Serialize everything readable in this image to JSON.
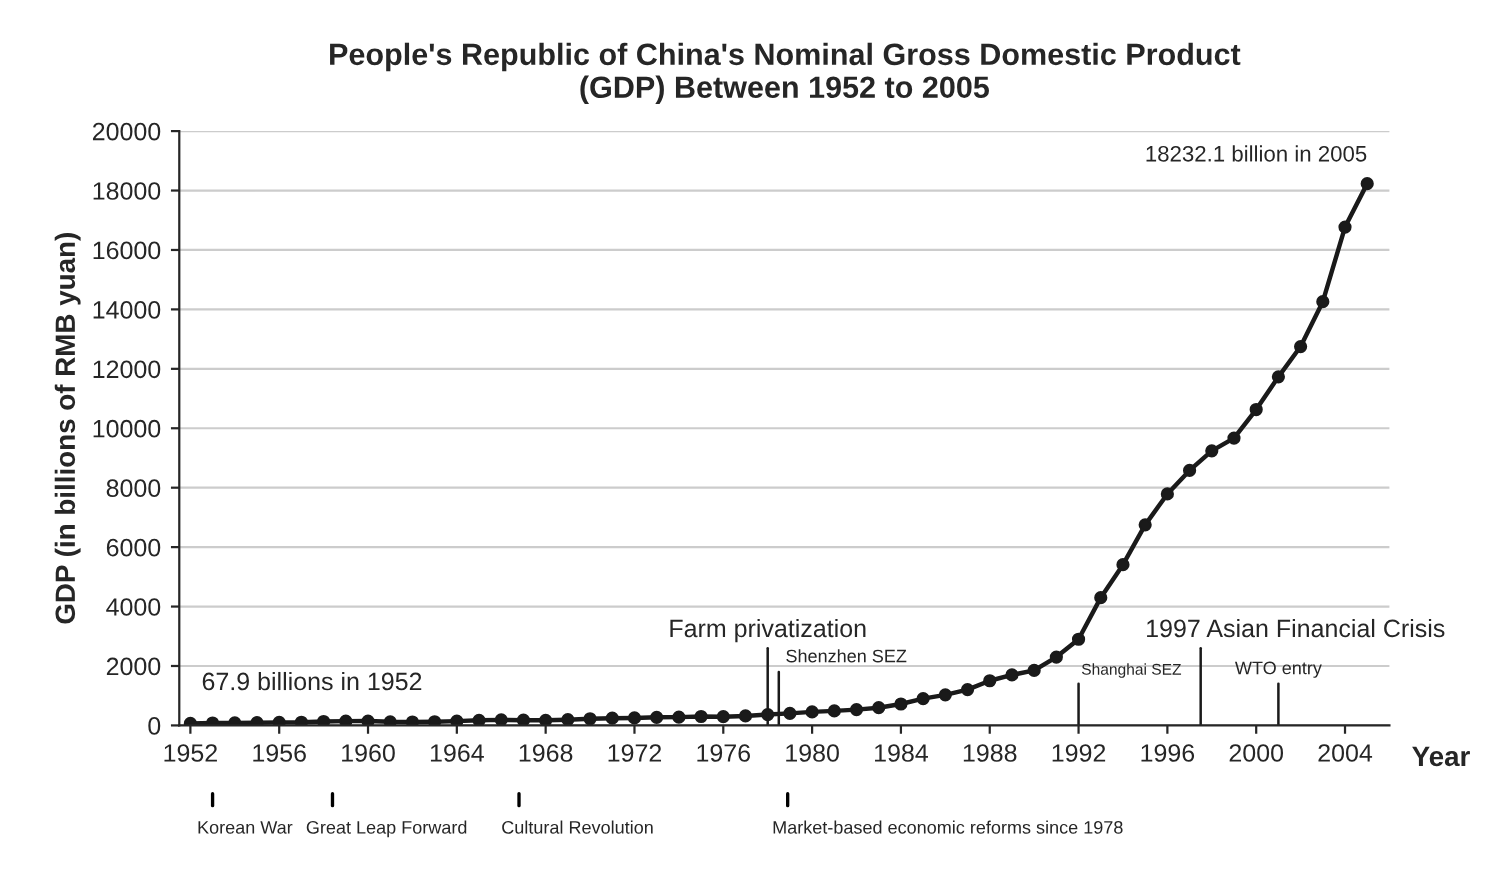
{
  "chart_data": {
    "type": "line",
    "title": "People's Republic of China's Nominal Gross Domestic Product\n(GDP) Between 1952 to 2005",
    "xlabel": "Year",
    "ylabel": "GDP (in billions of RMB yuan)",
    "x": [
      1952,
      1953,
      1954,
      1955,
      1956,
      1957,
      1958,
      1959,
      1960,
      1961,
      1962,
      1963,
      1964,
      1965,
      1966,
      1967,
      1968,
      1969,
      1970,
      1971,
      1972,
      1973,
      1974,
      1975,
      1976,
      1977,
      1978,
      1979,
      1980,
      1981,
      1982,
      1983,
      1984,
      1985,
      1986,
      1987,
      1988,
      1989,
      1990,
      1991,
      1992,
      1993,
      1994,
      1995,
      1996,
      1997,
      1998,
      1999,
      2000,
      2001,
      2002,
      2003,
      2004,
      2005
    ],
    "series": [
      {
        "color": "#1a1a1a",
        "values": [
          67.9,
          82,
          86,
          91,
          103,
          107,
          131,
          144,
          146,
          122,
          115,
          123,
          145,
          172,
          187,
          177,
          172,
          194,
          225,
          243,
          252,
          272,
          279,
          300,
          294,
          320,
          365,
          406,
          455,
          489,
          532,
          596,
          721,
          902,
          1028,
          1206,
          1504,
          1699,
          1850,
          2300,
          2900,
          4300,
          5410,
          6750,
          7790,
          8580,
          9240,
          9670,
          10630,
          11730,
          12750,
          14260,
          16770,
          18232.1
        ]
      }
    ],
    "xlim": [
      1951.5,
      2006
    ],
    "xticks": [
      1952,
      1956,
      1960,
      1964,
      1968,
      1972,
      1976,
      1980,
      1984,
      1988,
      1992,
      1996,
      2000,
      2004
    ],
    "ylim": [
      0,
      20000
    ],
    "yticks": [
      0,
      2000,
      4000,
      6000,
      8000,
      10000,
      12000,
      14000,
      16000,
      18000,
      20000
    ],
    "grid": "y",
    "marker": "circle",
    "line_style": "solid",
    "legend": false,
    "ref_lines": [
      {
        "axis": "x",
        "value": 1978,
        "label": "Farm privatization",
        "color": "#1a1a1a"
      },
      {
        "axis": "x",
        "value": 1978.5,
        "label": "Shenzhen SEZ",
        "color": "#1a1a1a"
      },
      {
        "axis": "x",
        "value": 1992,
        "label": "Shanghai SEZ",
        "color": "#1a1a1a"
      },
      {
        "axis": "x",
        "value": 1997.5,
        "label": "1997 Asian Financial Crisis",
        "color": "#1a1a1a"
      },
      {
        "axis": "x",
        "value": 2001,
        "label": "WTO entry",
        "color": "#1a1a1a"
      }
    ],
    "annotations": [
      {
        "text": "67.9 billions in 1952",
        "x": 1952,
        "y": 67.9
      },
      {
        "text": "18232.1 billion in 2005",
        "x": 2005,
        "y": 18232.1
      },
      "Korean War",
      "Great Leap Forward",
      "Cultural Revolution",
      "Market-based economic reforms since 1978"
    ]
  }
}
